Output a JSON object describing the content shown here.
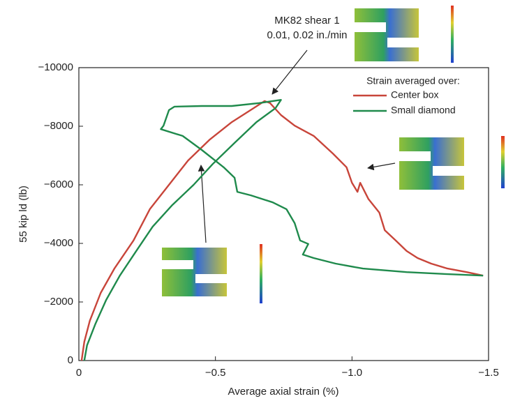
{
  "chart_data": {
    "type": "line",
    "xlabel": "Average axial strain (%)",
    "ylabel": "55 kip ld (lb)",
    "annotation": [
      "MK82 shear 1",
      "0.01, 0.02 in./min"
    ],
    "legend_title": "Strain averaged over:",
    "xlim": [
      0,
      -1.5
    ],
    "xticks": [
      0,
      {
        "value": -0.5,
        "label": "−0.5"
      },
      {
        "value": -1.0,
        "label": "−1.0"
      },
      {
        "value": -1.5,
        "label": "−1.5"
      }
    ],
    "ylim": [
      0,
      -10000
    ],
    "yticks": [
      0,
      {
        "value": -2000,
        "label": "−2000"
      },
      {
        "value": -4000,
        "label": "−4000"
      },
      {
        "value": -6000,
        "label": "−6000"
      },
      {
        "value": -8000,
        "label": "−8000"
      },
      {
        "value": -10000,
        "label": "−10000"
      }
    ],
    "series": [
      {
        "name": "Center box",
        "color": "#c8453a",
        "x": [
          -0.01,
          -0.02,
          -0.04,
          -0.08,
          -0.13,
          -0.2,
          -0.26,
          -0.33,
          -0.4,
          -0.48,
          -0.56,
          -0.64,
          -0.68,
          -0.7,
          -0.74,
          -0.79,
          -0.86,
          -0.93,
          -0.98,
          -1.0,
          -1.02,
          -1.03,
          -1.06,
          -1.1,
          -1.12,
          -1.16,
          -1.2,
          -1.24,
          -1.29,
          -1.35,
          -1.42,
          -1.48
        ],
        "values": [
          0,
          -640,
          -1360,
          -2310,
          -3140,
          -4100,
          -5170,
          -6000,
          -6830,
          -7550,
          -8140,
          -8620,
          -8860,
          -8790,
          -8380,
          -8020,
          -7670,
          -7070,
          -6600,
          -6070,
          -5760,
          -6070,
          -5520,
          -5050,
          -4450,
          -4100,
          -3740,
          -3500,
          -3310,
          -3140,
          -3020,
          -2900
        ]
      },
      {
        "name": "Small diamond",
        "color": "#1f8a4c",
        "x": [
          -0.02,
          -0.03,
          -0.06,
          -0.1,
          -0.15,
          -0.21,
          -0.27,
          -0.34,
          -0.42,
          -0.49,
          -0.57,
          -0.65,
          -0.72,
          -0.74,
          -0.66,
          -0.56,
          -0.45,
          -0.35,
          -0.33,
          -0.31,
          -0.3,
          -0.38,
          -0.45,
          -0.53,
          -0.57,
          -0.58,
          -0.63,
          -0.71,
          -0.76,
          -0.79,
          -0.81,
          -0.84,
          -0.82,
          -0.86,
          -0.94,
          -1.04,
          -1.2,
          -1.35,
          -1.48
        ],
        "values": [
          0,
          -520,
          -1240,
          -2070,
          -2900,
          -3740,
          -4570,
          -5290,
          -6000,
          -6710,
          -7430,
          -8140,
          -8620,
          -8900,
          -8790,
          -8690,
          -8690,
          -8670,
          -8550,
          -8020,
          -7900,
          -7670,
          -7190,
          -6600,
          -6240,
          -5760,
          -5640,
          -5400,
          -5170,
          -4690,
          -4100,
          -3980,
          -3620,
          -3500,
          -3310,
          -3140,
          -3020,
          -2950,
          -2900
        ]
      }
    ]
  }
}
